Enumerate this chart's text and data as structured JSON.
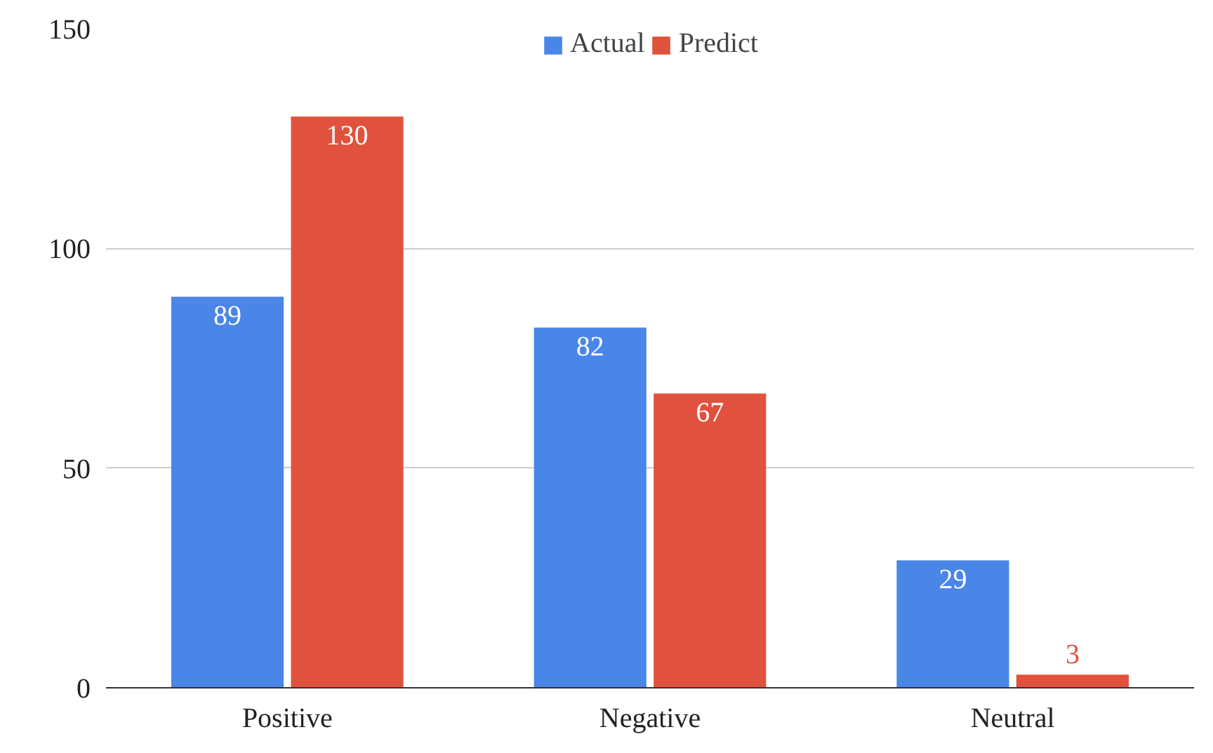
{
  "chart_data": {
    "type": "bar",
    "categories": [
      "Positive",
      "Negative",
      "Neutral"
    ],
    "series": [
      {
        "name": "Actual",
        "color": "#4a86e8",
        "values": [
          89,
          82,
          29
        ]
      },
      {
        "name": "Predict",
        "color": "#e0523d",
        "values": [
          130,
          67,
          3
        ]
      }
    ],
    "ylim": [
      0,
      150
    ],
    "yticks": [
      0,
      50,
      100,
      150
    ],
    "grid": "y",
    "legend": "top",
    "data_labels": true
  }
}
